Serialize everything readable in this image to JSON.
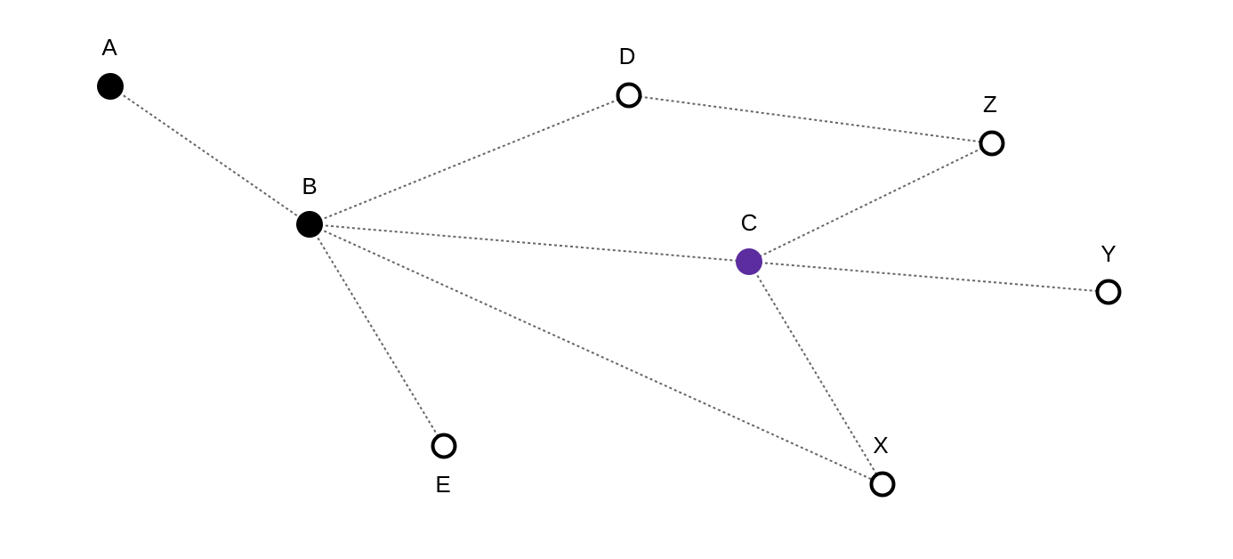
{
  "graph": {
    "nodes": {
      "A": {
        "label": "A",
        "state": "filled",
        "color": "#000000"
      },
      "B": {
        "label": "B",
        "state": "filled",
        "color": "#000000"
      },
      "C": {
        "label": "C",
        "state": "filled",
        "color": "#5c2d9e"
      },
      "D": {
        "label": "D",
        "state": "hollow",
        "color": "#000000"
      },
      "E": {
        "label": "E",
        "state": "hollow",
        "color": "#000000"
      },
      "X": {
        "label": "X",
        "state": "hollow",
        "color": "#000000"
      },
      "Y": {
        "label": "Y",
        "state": "hollow",
        "color": "#000000"
      },
      "Z": {
        "label": "Z",
        "state": "hollow",
        "color": "#000000"
      }
    },
    "edges": [
      [
        "A",
        "B"
      ],
      [
        "B",
        "D"
      ],
      [
        "B",
        "C"
      ],
      [
        "B",
        "E"
      ],
      [
        "B",
        "X"
      ],
      [
        "D",
        "Z"
      ],
      [
        "Z",
        "C"
      ],
      [
        "C",
        "Y"
      ],
      [
        "C",
        "X"
      ]
    ],
    "edge_style": "dashed",
    "edge_color": "#666666"
  }
}
